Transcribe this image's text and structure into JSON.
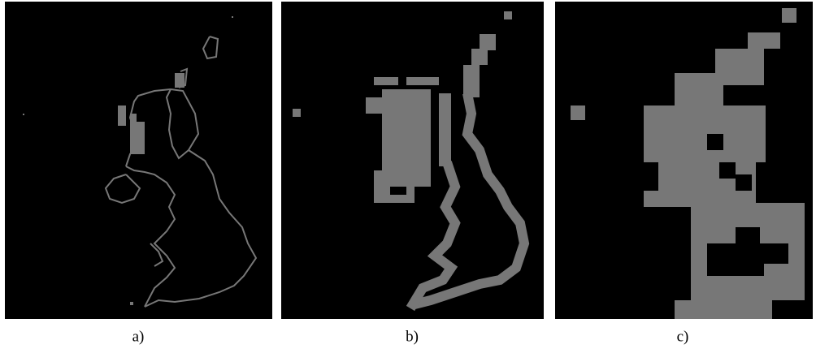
{
  "figure": {
    "panels": [
      {
        "label": "a)"
      },
      {
        "label": "b)"
      },
      {
        "label": "c)"
      }
    ]
  }
}
